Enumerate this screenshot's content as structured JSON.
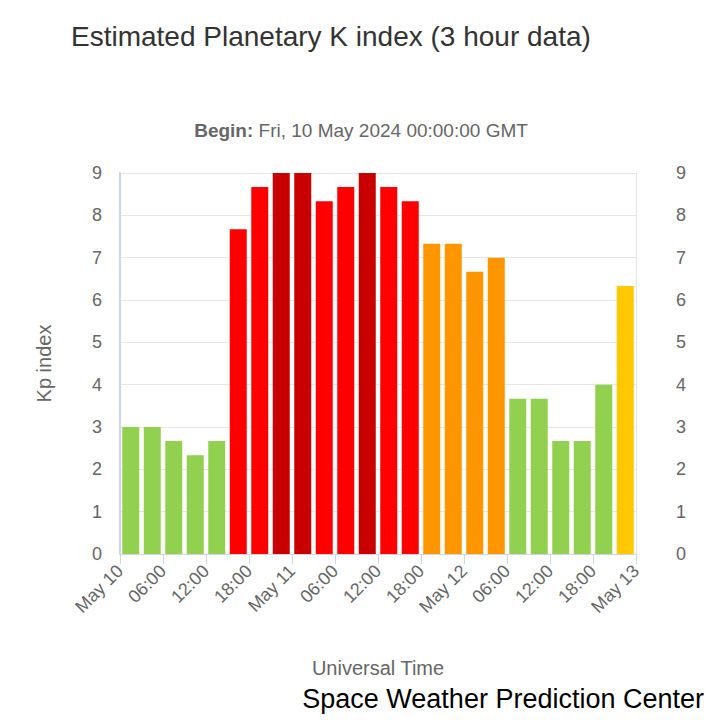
{
  "chart_data": {
    "type": "bar",
    "title": "Estimated Planetary K index (3 hour data)",
    "subtitle": "Begin: Fri, 10 May 2024 00:00:00 GMT",
    "x_label": "Universal Time",
    "y_label": "Kp index",
    "annotation": "Space Weather Prediction Center",
    "x": [
      1.5,
      4.5,
      7.5,
      10.5,
      13.5,
      16.5,
      19.5,
      22.5,
      25.5,
      28.5,
      31.5,
      34.5,
      37.5,
      40.5,
      43.5,
      46.5,
      49.5,
      52.5,
      55.5,
      58.5,
      61.5,
      64.5,
      67.5,
      70.5
    ],
    "values": [
      3.0,
      3.0,
      2.67,
      2.33,
      2.67,
      7.67,
      8.67,
      9.0,
      9.0,
      8.33,
      8.67,
      9.0,
      8.67,
      8.33,
      7.33,
      7.33,
      6.67,
      7.0,
      3.67,
      3.67,
      2.67,
      2.67,
      4.0,
      6.33
    ],
    "colors": [
      "#92d050",
      "#92d050",
      "#92d050",
      "#92d050",
      "#92d050",
      "#ff0000",
      "#ff0000",
      "#c80000",
      "#c80000",
      "#ff0000",
      "#ff0000",
      "#c80000",
      "#ff0000",
      "#ff0000",
      "#ff9600",
      "#ff9600",
      "#ff9600",
      "#ff9600",
      "#92d050",
      "#92d050",
      "#92d050",
      "#92d050",
      "#92d050",
      "#ffc800"
    ],
    "xlim": [
      0,
      72
    ],
    "xticks": [
      {
        "value": 0,
        "label": "May 10"
      },
      {
        "value": 6,
        "label": "06:00"
      },
      {
        "value": 12,
        "label": "12:00"
      },
      {
        "value": 18,
        "label": "18:00"
      },
      {
        "value": 24,
        "label": "May 11"
      },
      {
        "value": 30,
        "label": "06:00"
      },
      {
        "value": 36,
        "label": "12:00"
      },
      {
        "value": 42,
        "label": "18:00"
      },
      {
        "value": 48,
        "label": "May 12"
      },
      {
        "value": 54,
        "label": "06:00"
      },
      {
        "value": 60,
        "label": "12:00"
      },
      {
        "value": 66,
        "label": "18:00"
      },
      {
        "value": 72,
        "label": "May 13"
      }
    ],
    "ylim": [
      0,
      9
    ],
    "yticks": [
      0,
      1,
      2,
      3,
      4,
      5,
      6,
      7,
      8,
      9
    ],
    "y2lim": [
      0,
      9
    ],
    "y2ticks": [
      0,
      1,
      2,
      3,
      4,
      5,
      6,
      7,
      8,
      9
    ],
    "grid": true
  }
}
